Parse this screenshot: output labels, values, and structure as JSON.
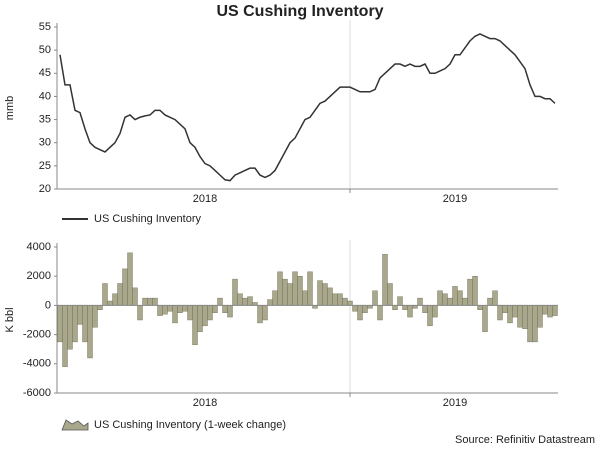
{
  "chart_data": [
    {
      "type": "line",
      "title": "US Cushing Inventory",
      "ylabel": "mmb",
      "ylim": [
        20,
        55
      ],
      "yticks": [
        20,
        25,
        30,
        35,
        40,
        45,
        50,
        55
      ],
      "categories": [
        null,
        null,
        null,
        null,
        null,
        null,
        null,
        null,
        null,
        null,
        null,
        null,
        null,
        null,
        null,
        null,
        null,
        null,
        null,
        null,
        null,
        null,
        null,
        null,
        null,
        null,
        null,
        null,
        null,
        "2018",
        null,
        null,
        null,
        null,
        null,
        null,
        null,
        null,
        null,
        null,
        null,
        null,
        null,
        null,
        null,
        null,
        null,
        null,
        null,
        null,
        null,
        null,
        null,
        null,
        null,
        null,
        null,
        null,
        null,
        null,
        null,
        null,
        null,
        null,
        null,
        null,
        null,
        null,
        null,
        null,
        null,
        null,
        null,
        null,
        null,
        null,
        null,
        null,
        null,
        "2019",
        null,
        null,
        null,
        null,
        null,
        null,
        null,
        null,
        null,
        null,
        null,
        null,
        null,
        null,
        null,
        null,
        null,
        null,
        null,
        null
      ],
      "series": [
        {
          "name": "US Cushing Inventory",
          "color": "#333333",
          "values": [
            49,
            42.5,
            42.5,
            37,
            36.5,
            33,
            30,
            29,
            28.5,
            28,
            29,
            30,
            32,
            35.5,
            36,
            35,
            35.5,
            35.8,
            36,
            37,
            37,
            36,
            35.5,
            35,
            34,
            33,
            30,
            29,
            27,
            25.5,
            25,
            24,
            23,
            22,
            21.8,
            23,
            23.5,
            24,
            24.5,
            24.5,
            23,
            22.5,
            23,
            24,
            26,
            28,
            30,
            31,
            33,
            35,
            35.5,
            37,
            38.5,
            39,
            40,
            41,
            42,
            42,
            42,
            41.5,
            41,
            41,
            41,
            41.5,
            44,
            45,
            46,
            47,
            47,
            46.5,
            47,
            46.5,
            46.5,
            47,
            45,
            45,
            45.5,
            46,
            47,
            49,
            49,
            50.5,
            52,
            53,
            53.5,
            53,
            52.5,
            52.5,
            52,
            51,
            50,
            49,
            47.5,
            46,
            42.5,
            40,
            40,
            39.5,
            39.5,
            38.5
          ]
        }
      ]
    },
    {
      "type": "area",
      "ylabel": "K bbl",
      "source": "Source: Refinitiv Datastream",
      "ylim": [
        -6000,
        4000
      ],
      "yticks": [
        -6000,
        -4000,
        -2000,
        0,
        2000,
        4000
      ],
      "categories": [
        null,
        null,
        null,
        null,
        null,
        null,
        null,
        null,
        null,
        null,
        null,
        null,
        null,
        null,
        null,
        null,
        null,
        null,
        null,
        null,
        null,
        null,
        null,
        null,
        null,
        null,
        null,
        null,
        null,
        "2018",
        null,
        null,
        null,
        null,
        null,
        null,
        null,
        null,
        null,
        null,
        null,
        null,
        null,
        null,
        null,
        null,
        null,
        null,
        null,
        null,
        null,
        null,
        null,
        null,
        null,
        null,
        null,
        null,
        null,
        null,
        null,
        null,
        null,
        null,
        null,
        null,
        null,
        null,
        null,
        null,
        null,
        null,
        null,
        null,
        null,
        null,
        null,
        null,
        null,
        "2019",
        null,
        null,
        null,
        null,
        null,
        null,
        null,
        null,
        null,
        null,
        null,
        null,
        null,
        null,
        null,
        null,
        null,
        null,
        null,
        null
      ],
      "series": [
        {
          "name": "US Cushing Inventory (1-week change)",
          "color": "#a9a78c",
          "values": [
            -2500,
            -4200,
            -3000,
            -2500,
            -1300,
            -2500,
            -3600,
            -1500,
            -300,
            1500,
            300,
            800,
            1500,
            2500,
            3600,
            1200,
            -1000,
            500,
            500,
            500,
            -700,
            -600,
            -400,
            -1200,
            -500,
            -400,
            -1000,
            -2700,
            -1800,
            -1400,
            -1000,
            -500,
            500,
            -500,
            -800,
            1800,
            800,
            500,
            600,
            200,
            -1200,
            -1000,
            400,
            1000,
            2300,
            1800,
            1500,
            2300,
            2000,
            1000,
            2300,
            -200,
            1700,
            1500,
            1200,
            800,
            800,
            500,
            300,
            -400,
            -1000,
            -500,
            -200,
            1000,
            -1000,
            3500,
            1500,
            -300,
            600,
            -300,
            -800,
            -200,
            500,
            -500,
            -1400,
            -800,
            1000,
            800,
            500,
            1300,
            1000,
            500,
            1800,
            2000,
            -300,
            -1800,
            500,
            1000,
            -1000,
            -500,
            -1200,
            -800,
            -1500,
            -1600,
            -2500,
            -2500,
            -1500,
            -600,
            -800,
            -700
          ]
        }
      ]
    }
  ]
}
